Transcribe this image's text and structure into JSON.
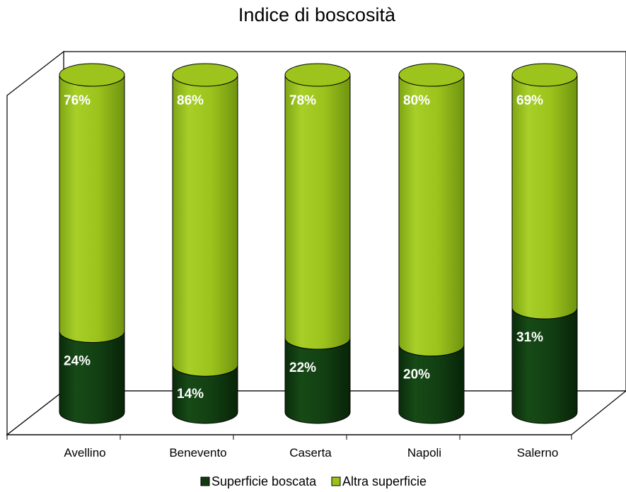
{
  "chart_data": {
    "type": "bar",
    "stacked": true,
    "style": "3d-cylinder",
    "title": "Indice di boscosità",
    "categories": [
      "Avellino",
      "Benevento",
      "Caserta",
      "Napoli",
      "Salerno"
    ],
    "series": [
      {
        "name": "Superficie boscata",
        "values": [
          24,
          14,
          22,
          20,
          31
        ],
        "labels": [
          "24%",
          "14%",
          "22%",
          "20%",
          "31%"
        ],
        "color": "#0f3a10"
      },
      {
        "name": "Altra superficie",
        "values": [
          76,
          86,
          78,
          80,
          69
        ],
        "labels": [
          "76%",
          "86%",
          "78%",
          "80%",
          "69%"
        ],
        "color": "#9ac21a"
      }
    ],
    "ylim": [
      0,
      100
    ],
    "grid": false,
    "legend": "bottom"
  }
}
